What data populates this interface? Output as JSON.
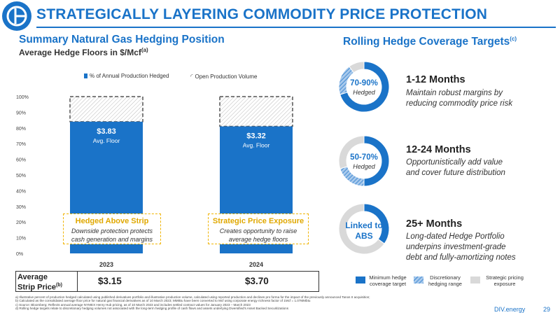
{
  "header": {
    "title": "STRATEGICALLY LAYERING COMMODITY PRICE PROTECTION"
  },
  "left": {
    "title": "Summary Natural Gas Hedging Position",
    "subtitle": "Average Hedge Floors in $/Mcf",
    "subtitle_note": "(a)"
  },
  "legend": {
    "hedged": "% of Annual Production Hedged",
    "open": "Open Production Volume"
  },
  "chart_data": {
    "type": "bar",
    "categories": [
      "2023",
      "2024"
    ],
    "series": [
      {
        "name": "% of Annual Production Hedged",
        "values": [
          84,
          81
        ]
      },
      {
        "name": "Open Production Volume",
        "values": [
          16,
          19
        ]
      }
    ],
    "bar_labels": [
      "$3.83",
      "$3.32"
    ],
    "bar_sublabels": [
      "Avg. Floor",
      "Avg. Floor"
    ],
    "yticks": [
      "0%",
      "10%",
      "20%",
      "30%",
      "40%",
      "50%",
      "60%",
      "70%",
      "80%",
      "90%",
      "100%"
    ],
    "ylim": [
      0,
      100
    ]
  },
  "callouts": [
    {
      "title": "Hedged Above Strip",
      "desc1": "Downside protection protects",
      "desc2": "cash generation and margins"
    },
    {
      "title": "Strategic Price Exposure",
      "desc1": "Creates opportunity to raise",
      "desc2": "average hedge floors"
    }
  ],
  "strip": {
    "label1": "Average",
    "label2": "Strip Price",
    "label_note": "(b)",
    "values": [
      "$3.15",
      "$3.70"
    ]
  },
  "right": {
    "title": "Rolling Hedge Coverage Targets",
    "title_note": "(c)",
    "rows": [
      {
        "center1": "70-90%",
        "center2": "Hedged",
        "heading": "1-12 Months",
        "desc1": "Maintain robust margins by",
        "desc2": "reducing commodity price risk",
        "desc3": ""
      },
      {
        "center1": "50-70%",
        "center2": "Hedged",
        "heading": "12-24 Months",
        "desc1": "Opportunistically add value",
        "desc2": "and cover future distribution",
        "desc3": ""
      },
      {
        "center1": "Linked to",
        "center2": "ABS",
        "heading": "25+ Months",
        "desc1": "Long-dated Hedge Portfolio",
        "desc2": "underpins investment-grade",
        "desc3": "debt and fully-amortizing notes"
      }
    ],
    "donut_segments": [
      {
        "min": 0.7,
        "range": 0.2
      },
      {
        "min": 0.5,
        "range": 0.2
      },
      {
        "min": 0.35,
        "range": 0.0
      }
    ]
  },
  "bottom_legend": [
    {
      "l1": "Minimum hedge",
      "l2": "coverage target"
    },
    {
      "l1": "Discretionary",
      "l2": "hedging range"
    },
    {
      "l1": "Strategic pricing",
      "l2": "exposure"
    }
  ],
  "colors": {
    "brand": "#1a73c8",
    "gold": "#f0b400",
    "grey": "#d9d9d9"
  },
  "footnotes": [
    "a) Illustrative percent of production hedged calculated using published derivatives portfolio and illustrative production volume, calculated using reported production and declines pro forma for the impact of the previously announced Tanos II acquisition;",
    "b) Calculated as the consolidated average floor price for natural gas financial derivatives as of 10 March 2023; MMBtu have been converted to Mcf using corporate energy richness factor of 1Mcf = 1.07MMbtu",
    "c) Source: Bloomberg; Reflects annual average NYMEX Henry Hub pricing, as of 10 March 2023 and includes settled contract values for January 2023 – March 2023",
    "d) Rolling hedge targets relate to discretionary hedging volumes not associated with the long-term hedging profile of cash flows and assets underlying Diversified's Asset Backed Securitizations"
  ],
  "footer": {
    "brand": "DIV.energy",
    "page": "29"
  }
}
